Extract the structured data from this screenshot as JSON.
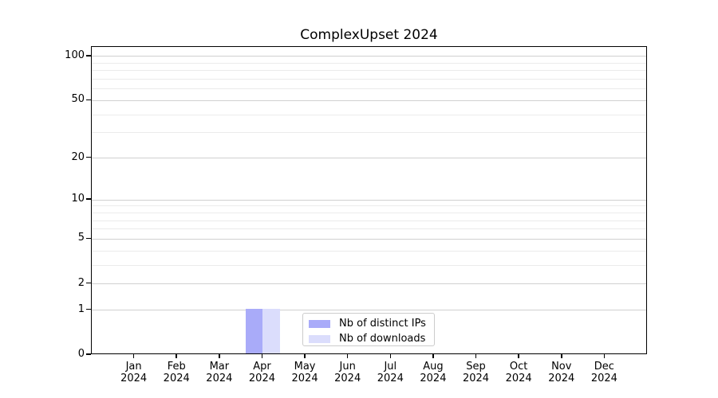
{
  "title": "ComplexUpset 2024",
  "chart_data": {
    "type": "bar",
    "title": "ComplexUpset 2024",
    "categories": [
      "Jan 2024",
      "Feb 2024",
      "Mar 2024",
      "Apr 2024",
      "May 2024",
      "Jun 2024",
      "Jul 2024",
      "Aug 2024",
      "Sep 2024",
      "Oct 2024",
      "Nov 2024",
      "Dec 2024"
    ],
    "series": [
      {
        "name": "Nb of distinct IPs",
        "color": "#a9abf9",
        "values": [
          0,
          0,
          0,
          1,
          0,
          0,
          0,
          0,
          0,
          0,
          0,
          0
        ]
      },
      {
        "name": "Nb of downloads",
        "color": "#dbddfc",
        "values": [
          0,
          0,
          0,
          1,
          0,
          0,
          0,
          0,
          0,
          0,
          0,
          0
        ]
      }
    ],
    "xlabel": "",
    "ylabel": "",
    "yscale": "log1p",
    "ylim": [
      0,
      116
    ],
    "y_ticks": [
      0,
      1,
      2,
      5,
      10,
      20,
      50,
      100
    ],
    "y_minor_ticks": [
      3,
      4,
      6,
      7,
      8,
      9,
      30,
      40,
      60,
      70,
      80,
      90
    ],
    "grid": "horizontal",
    "legend_position": "lower center",
    "style": {
      "grid_major_color": "#d0d0d0",
      "grid_minor_color": "#ebebeb",
      "spine_color": "#000000",
      "text_color": "#000000",
      "legend_border_color": "#cccccc",
      "background": "#ffffff"
    }
  }
}
